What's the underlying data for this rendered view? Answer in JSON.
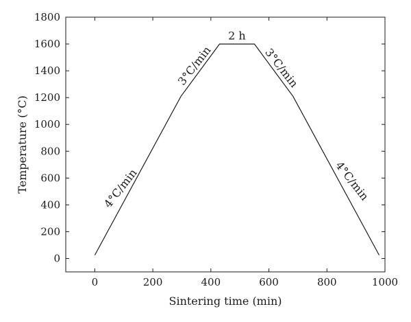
{
  "chart_data": {
    "type": "line",
    "title": "",
    "xlabel": "Sintering time (min)",
    "ylabel": "Temperature (°C)",
    "xlim": [
      -100,
      1000
    ],
    "ylim": [
      -100,
      1800
    ],
    "xticks": [
      0,
      200,
      400,
      600,
      800,
      1000
    ],
    "yticks": [
      0,
      200,
      400,
      600,
      800,
      1000,
      1200,
      1400,
      1600,
      1800
    ],
    "grid": false,
    "series": [
      {
        "x": [
          0,
          297,
          430,
          550,
          683,
          980
        ],
        "y": [
          25,
          1210,
          1600,
          1600,
          1210,
          25
        ]
      }
    ],
    "annotations": [
      {
        "text": "4°C/min",
        "x": 90,
        "y": 520,
        "rotation": -52
      },
      {
        "text": "3°C/min",
        "x": 345,
        "y": 1435,
        "rotation": -52
      },
      {
        "text": "2 h",
        "x": 490,
        "y": 1657,
        "rotation": 0
      },
      {
        "text": "3°C/min",
        "x": 642,
        "y": 1418,
        "rotation": 52
      },
      {
        "text": "4°C/min",
        "x": 885,
        "y": 575,
        "rotation": 52
      }
    ]
  }
}
